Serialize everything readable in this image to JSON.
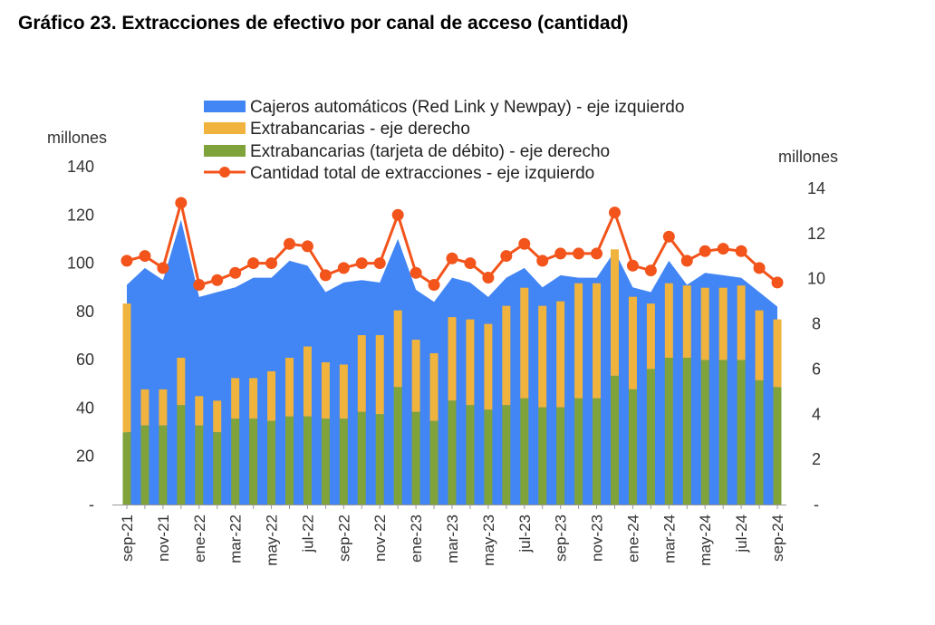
{
  "title": "Gráfico 23. Extracciones de efectivo por canal de acceso (cantidad)",
  "colors": {
    "cajeros": "#4285F4",
    "extrabancarias": "#F0B33E",
    "debito": "#7FA33A",
    "total": "#F2541B"
  },
  "chart_data": {
    "type": "bar",
    "title": "Gráfico 23. Extracciones de efectivo por canal de acceso (cantidad)",
    "y_left": {
      "label": "millones",
      "ylim": [
        0,
        140
      ],
      "ticks": [
        "-",
        "20",
        "40",
        "60",
        "80",
        "100",
        "120",
        "140"
      ]
    },
    "y_right": {
      "label": "millones",
      "ylim": [
        0,
        14
      ],
      "ticks": [
        "-",
        "2",
        "4",
        "6",
        "8",
        "10",
        "12",
        "14"
      ]
    },
    "categories": [
      "sep-21",
      "oct-21",
      "nov-21",
      "dic-21",
      "ene-22",
      "feb-22",
      "mar-22",
      "abr-22",
      "may-22",
      "jun-22",
      "jul-22",
      "ago-22",
      "sep-22",
      "oct-22",
      "nov-22",
      "dic-22",
      "ene-23",
      "feb-23",
      "mar-23",
      "abr-23",
      "may-23",
      "jun-23",
      "jul-23",
      "ago-23",
      "sep-23",
      "oct-23",
      "nov-23",
      "dic-23",
      "ene-24",
      "feb-24",
      "mar-24",
      "abr-24",
      "may-24",
      "jun-24",
      "jul-24",
      "ago-24",
      "sep-24"
    ],
    "x_tick_labels": [
      "sep-21",
      "nov-21",
      "ene-22",
      "mar-22",
      "may-22",
      "jul-22",
      "sep-22",
      "nov-22",
      "ene-23",
      "mar-23",
      "may-23",
      "jul-23",
      "sep-23",
      "nov-23",
      "ene-24",
      "mar-24",
      "may-24",
      "jul-24",
      "sep-24"
    ],
    "legend": [
      "Cajeros automáticos (Red Link y Newpay) - eje izquierdo",
      "Extrabancarias - eje derecho",
      "Extrabancarias (tarjeta de débito) - eje derecho",
      "Cantidad total de extracciones - eje izquierdo"
    ],
    "series": [
      {
        "name": "Cajeros automáticos (Red Link y Newpay) - eje izquierdo",
        "type": "area",
        "axis": "left",
        "values": [
          91,
          98,
          93,
          118,
          86,
          88,
          90,
          94,
          94,
          101,
          99,
          88,
          92,
          93,
          92,
          110,
          89,
          84,
          94,
          92,
          86,
          94,
          98,
          90,
          95,
          94,
          94,
          105,
          90,
          88,
          101,
          91,
          96,
          95,
          94,
          88,
          82
        ]
      },
      {
        "name": "Extrabancarias - eje derecho",
        "type": "bar",
        "axis": "right",
        "values": [
          8.9,
          5.1,
          5.1,
          6.5,
          4.8,
          4.6,
          5.6,
          5.6,
          5.9,
          6.5,
          7.0,
          6.3,
          6.2,
          7.5,
          7.5,
          8.6,
          7.3,
          6.7,
          8.3,
          8.2,
          8.0,
          8.8,
          9.6,
          8.8,
          9.0,
          9.8,
          9.8,
          11.3,
          9.2,
          8.9,
          9.8,
          9.7,
          9.6,
          9.6,
          9.7,
          8.6,
          8.2
        ]
      },
      {
        "name": "Extrabancarias (tarjeta de débito) - eje derecho",
        "type": "bar",
        "axis": "right",
        "values": [
          3.2,
          3.5,
          3.5,
          4.4,
          3.5,
          3.2,
          3.8,
          3.8,
          3.7,
          3.9,
          3.9,
          3.8,
          3.8,
          4.1,
          4.0,
          5.2,
          4.1,
          3.7,
          4.6,
          4.4,
          4.2,
          4.4,
          4.7,
          4.3,
          4.3,
          4.7,
          4.7,
          5.7,
          5.1,
          6.0,
          6.5,
          6.5,
          6.4,
          6.4,
          6.4,
          5.5,
          5.2
        ]
      },
      {
        "name": "Cantidad total de extracciones - eje izquierdo",
        "type": "line",
        "axis": "left",
        "values": [
          101,
          103,
          98,
          125,
          91,
          93,
          96,
          100,
          100,
          108,
          107,
          95,
          98,
          100,
          100,
          120,
          96,
          91,
          102,
          100,
          94,
          103,
          108,
          101,
          104,
          104,
          104,
          121,
          99,
          97,
          111,
          101,
          105,
          106,
          105,
          98,
          92
        ]
      }
    ]
  }
}
